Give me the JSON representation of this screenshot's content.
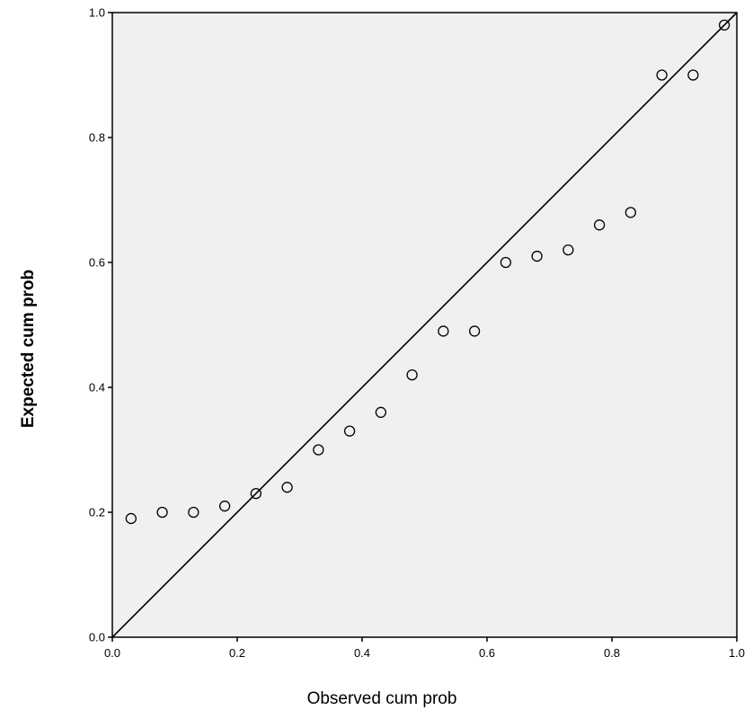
{
  "chart_data": {
    "type": "scatter",
    "title": "",
    "xlabel": "Observed cum prob",
    "ylabel": "Expected cum prob",
    "xlim": [
      0.0,
      1.0
    ],
    "ylim": [
      0.0,
      1.0
    ],
    "x_ticks": [
      "0.0",
      "0.2",
      "0.4",
      "0.6",
      "0.8",
      "1.0"
    ],
    "y_ticks": [
      "0.0",
      "0.2",
      "0.4",
      "0.6",
      "0.8",
      "1.0"
    ],
    "grid": false,
    "plot_background": "#f0f0f0",
    "marker": "open-circle",
    "reference_line": {
      "from": [
        0,
        0
      ],
      "to": [
        1,
        1
      ]
    },
    "points": [
      {
        "x": 0.03,
        "y": 0.19
      },
      {
        "x": 0.08,
        "y": 0.2
      },
      {
        "x": 0.13,
        "y": 0.2
      },
      {
        "x": 0.18,
        "y": 0.21
      },
      {
        "x": 0.23,
        "y": 0.23
      },
      {
        "x": 0.28,
        "y": 0.24
      },
      {
        "x": 0.33,
        "y": 0.3
      },
      {
        "x": 0.38,
        "y": 0.33
      },
      {
        "x": 0.43,
        "y": 0.36
      },
      {
        "x": 0.48,
        "y": 0.42
      },
      {
        "x": 0.53,
        "y": 0.49
      },
      {
        "x": 0.58,
        "y": 0.49
      },
      {
        "x": 0.63,
        "y": 0.6
      },
      {
        "x": 0.68,
        "y": 0.61
      },
      {
        "x": 0.73,
        "y": 0.62
      },
      {
        "x": 0.78,
        "y": 0.66
      },
      {
        "x": 0.83,
        "y": 0.68
      },
      {
        "x": 0.88,
        "y": 0.9
      },
      {
        "x": 0.93,
        "y": 0.9
      },
      {
        "x": 0.98,
        "y": 0.98
      }
    ]
  }
}
